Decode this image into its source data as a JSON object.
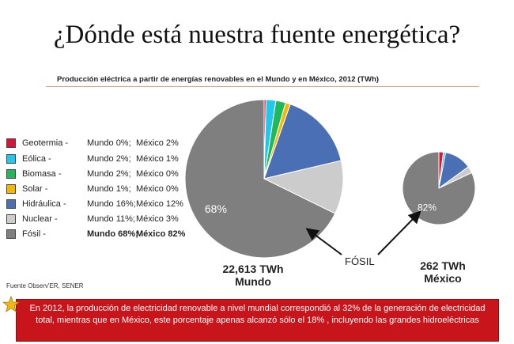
{
  "title": "¿Dónde está nuestra fuente energética?",
  "subtitle": "Producción eléctrica a partir de energías renovables en el Mundo y en México, 2012 (TWh)",
  "legend": [
    {
      "name": "Geotermia  -",
      "world": "Mundo 0%;",
      "mexico": "México 2%",
      "color": "#d9143a",
      "bold": false
    },
    {
      "name": "Eólica  -",
      "world": "Mundo 2%;",
      "mexico": "México 1%",
      "color": "#21c8ea",
      "bold": false
    },
    {
      "name": "Biomasa -",
      "world": "Mundo 2%;",
      "mexico": "México 0%",
      "color": "#1fb85a",
      "bold": false
    },
    {
      "name": "Solar -",
      "world": "Mundo 1%;",
      "mexico": "México 0%",
      "color": "#f5b800",
      "bold": false
    },
    {
      "name": "Hidráulica -",
      "world": "Mundo 16%;",
      "mexico": "México 12%",
      "color": "#4a6fb5",
      "bold": false
    },
    {
      "name": "Nuclear -",
      "world": "Mundo 11%;",
      "mexico": "México 3%",
      "color": "#cccccc",
      "bold": false
    },
    {
      "name": "Fósil -",
      "world": "Mundo 68%;",
      "mexico": "México 82%",
      "color": "#7f7f7f",
      "bold": true
    }
  ],
  "chart_data": [
    {
      "type": "pie",
      "title": "22,613 TWh Mundo",
      "categories": [
        "Geotermia",
        "Eólica",
        "Biomasa",
        "Solar",
        "Hidráulica",
        "Nuclear",
        "Fósil"
      ],
      "values": [
        0.4,
        2,
        2,
        1,
        16,
        11,
        68
      ],
      "colors": [
        "#d9143a",
        "#21c8ea",
        "#1fb85a",
        "#f5b800",
        "#4a6fb5",
        "#cccccc",
        "#7f7f7f"
      ],
      "data_labels": {
        "Fósil": "68%"
      }
    },
    {
      "type": "pie",
      "title": "262 TWh México",
      "categories": [
        "Geotermia",
        "Eólica",
        "Biomasa",
        "Solar",
        "Hidráulica",
        "Nuclear",
        "Fósil"
      ],
      "values": [
        2,
        1,
        0,
        0,
        12,
        3,
        82
      ],
      "colors": [
        "#d9143a",
        "#21c8ea",
        "#1fb85a",
        "#f5b800",
        "#4a6fb5",
        "#cccccc",
        "#7f7f7f"
      ],
      "data_labels": {
        "Fósil": "82%"
      }
    }
  ],
  "captions": {
    "world_total": "22,613 TWh",
    "world_name": "Mundo",
    "mexico_total": "262 TWh",
    "mexico_name": "México"
  },
  "annotation": "FÓSIL",
  "source": "Fuente Observ'ER, SENER",
  "banner": "En 2012, la producción de electricidad renovable  a nivel mundial correspondió  al 32% de la generación de electricidad total, mientras que en México, este porcentaje apenas alcanzó sólo el 18% , incluyendo las grandes hidroeléctricas"
}
